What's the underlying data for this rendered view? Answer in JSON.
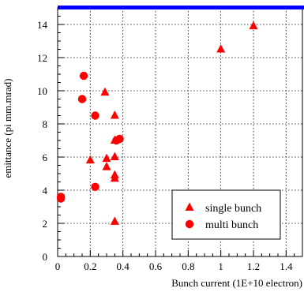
{
  "chart_data": {
    "type": "scatter",
    "title": "",
    "xlabel": "Bunch current (1E+10 electron)",
    "ylabel": "emittance (pi mm.mrad)",
    "xlim": [
      0,
      1.5
    ],
    "ylim": [
      0,
      15
    ],
    "x_ticks": [
      "0",
      "0.2",
      "0.4",
      "0.6",
      "0.8",
      "1",
      "1.2",
      "1.4"
    ],
    "y_ticks": [
      "0",
      "2",
      "4",
      "6",
      "8",
      "10",
      "12",
      "14"
    ],
    "grid": true,
    "legend_position": "bottom-right",
    "colors": {
      "marker": "#ff0000",
      "top_border": "#0000ff"
    },
    "series": [
      {
        "name": "single bunch",
        "marker": "triangle",
        "points": [
          {
            "x": 0.2,
            "y": 5.8
          },
          {
            "x": 0.29,
            "y": 9.9
          },
          {
            "x": 0.3,
            "y": 5.9
          },
          {
            "x": 0.3,
            "y": 5.4
          },
          {
            "x": 0.35,
            "y": 8.5
          },
          {
            "x": 0.35,
            "y": 7.0
          },
          {
            "x": 0.35,
            "y": 6.0
          },
          {
            "x": 0.35,
            "y": 4.9
          },
          {
            "x": 0.35,
            "y": 4.7
          },
          {
            "x": 0.35,
            "y": 2.1
          },
          {
            "x": 1.0,
            "y": 12.5
          },
          {
            "x": 1.2,
            "y": 13.9
          }
        ]
      },
      {
        "name": "multi bunch",
        "marker": "circle",
        "points": [
          {
            "x": 0.02,
            "y": 3.6
          },
          {
            "x": 0.02,
            "y": 3.5
          },
          {
            "x": 0.15,
            "y": 9.5
          },
          {
            "x": 0.16,
            "y": 10.9
          },
          {
            "x": 0.23,
            "y": 8.5
          },
          {
            "x": 0.23,
            "y": 4.2
          },
          {
            "x": 0.36,
            "y": 7.0
          },
          {
            "x": 0.38,
            "y": 7.1
          }
        ]
      }
    ]
  }
}
